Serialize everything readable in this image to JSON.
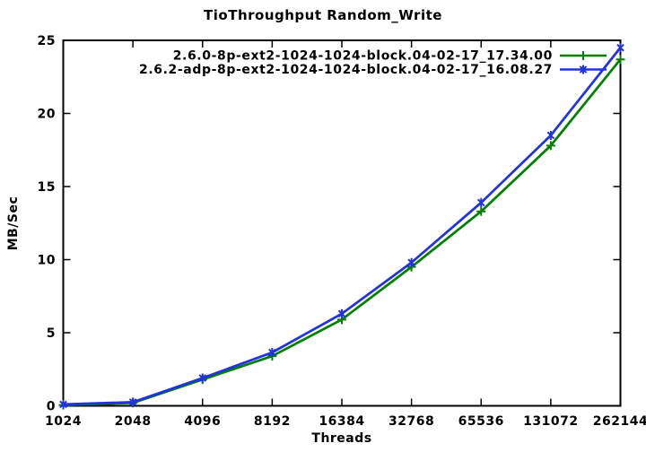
{
  "page": {
    "background": "#ffffff",
    "text_color": "#000000"
  },
  "chart_data": {
    "type": "line",
    "title": "TioThroughput Random_Write",
    "xlabel": "Threads",
    "ylabel": "MB/Sec",
    "x_scale": "log2",
    "categories": [
      "1024",
      "2048",
      "4096",
      "8192",
      "16384",
      "32768",
      "65536",
      "131072",
      "262144"
    ],
    "ylim": [
      0,
      25
    ],
    "yticks": [
      0,
      5,
      10,
      15,
      20,
      25
    ],
    "grid": false,
    "tick_style": "inward-mirrored",
    "legend_position": "top-right-inside",
    "axis_color": "#000000",
    "series": [
      {
        "name": "2.6.0-8p-ext2-1024-1024-block.04-02-17_17.34.00",
        "color": "#008000",
        "marker": "plus",
        "values": [
          0.05,
          0.2,
          1.8,
          3.4,
          5.9,
          9.5,
          13.3,
          17.8,
          23.7
        ]
      },
      {
        "name": "2.6.2-adp-8p-ext2-1024-1024-block.04-02-17_16.08.27",
        "color": "#2233dd",
        "marker": "star",
        "values": [
          0.1,
          0.25,
          1.9,
          3.65,
          6.3,
          9.8,
          13.9,
          18.5,
          24.5
        ]
      }
    ]
  }
}
